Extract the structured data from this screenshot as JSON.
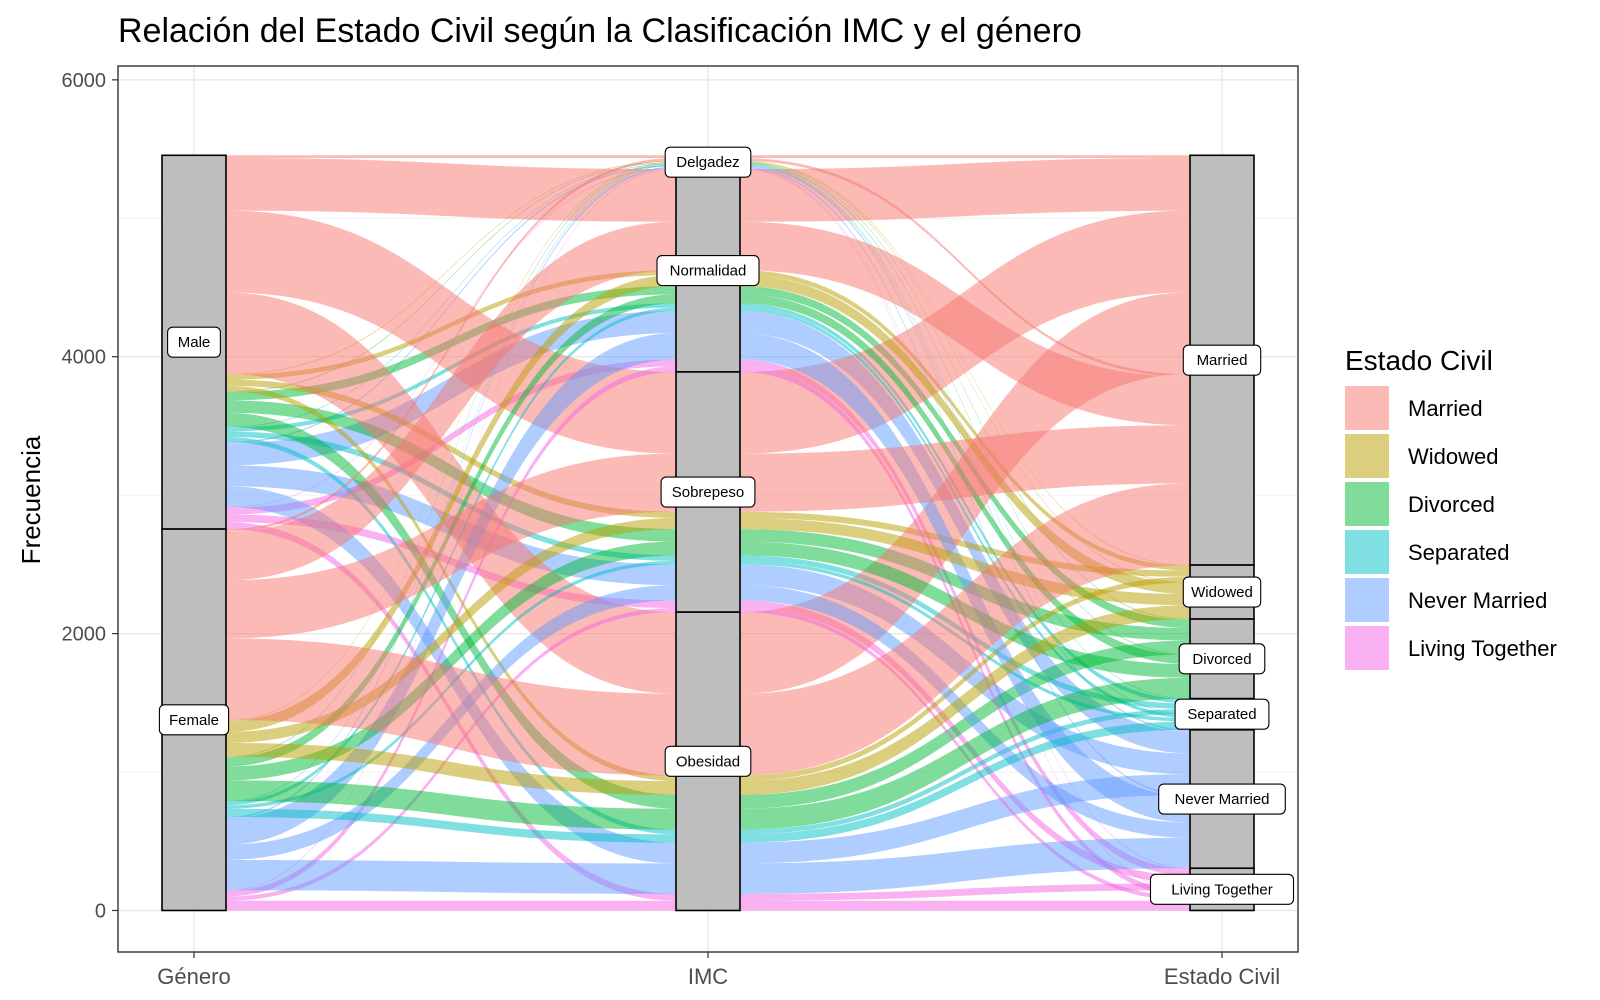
{
  "chart_data": {
    "type": "alluvial",
    "title": "Relación del Estado Civil según la Clasificación IMC y el género",
    "xlabel": "",
    "ylabel": "Frecuencia",
    "ylim": [
      -300,
      6100
    ],
    "yticks": [
      0,
      2000,
      4000,
      6000
    ],
    "axes": [
      "Género",
      "IMC",
      "Estado Civil"
    ],
    "grid": true,
    "legend_position": "right",
    "legend_title": "Estado Civil",
    "categories": {
      "genero": [
        "Male",
        "Female"
      ],
      "imc": [
        "Delgadez",
        "Normalidad",
        "Sobrepeso",
        "Obesidad"
      ],
      "estado": [
        "Married",
        "Widowed",
        "Divorced",
        "Separated",
        "Never Married",
        "Living Together"
      ]
    },
    "colors": {
      "Married": "#F8766D",
      "Widowed": "#B79F00",
      "Divorced": "#00BA38",
      "Separated": "#00BFC4",
      "Never Married": "#619CFF",
      "Living Together": "#F564E3"
    },
    "flows": [
      {
        "genero": "Male",
        "imc": "Delgadez",
        "estado": "Married",
        "value": 20
      },
      {
        "genero": "Male",
        "imc": "Delgadez",
        "estado": "Widowed",
        "value": 5
      },
      {
        "genero": "Male",
        "imc": "Delgadez",
        "estado": "Divorced",
        "value": 5
      },
      {
        "genero": "Male",
        "imc": "Delgadez",
        "estado": "Separated",
        "value": 5
      },
      {
        "genero": "Male",
        "imc": "Delgadez",
        "estado": "Never Married",
        "value": 10
      },
      {
        "genero": "Male",
        "imc": "Delgadez",
        "estado": "Living Together",
        "value": 5
      },
      {
        "genero": "Male",
        "imc": "Normalidad",
        "estado": "Married",
        "value": 380
      },
      {
        "genero": "Male",
        "imc": "Normalidad",
        "estado": "Widowed",
        "value": 35
      },
      {
        "genero": "Male",
        "imc": "Normalidad",
        "estado": "Divorced",
        "value": 60
      },
      {
        "genero": "Male",
        "imc": "Normalidad",
        "estado": "Separated",
        "value": 30
      },
      {
        "genero": "Male",
        "imc": "Normalidad",
        "estado": "Never Married",
        "value": 160
      },
      {
        "genero": "Male",
        "imc": "Normalidad",
        "estado": "Living Together",
        "value": 50
      },
      {
        "genero": "Male",
        "imc": "Sobrepeso",
        "estado": "Married",
        "value": 590
      },
      {
        "genero": "Male",
        "imc": "Sobrepeso",
        "estado": "Widowed",
        "value": 45
      },
      {
        "genero": "Male",
        "imc": "Sobrepeso",
        "estado": "Divorced",
        "value": 90
      },
      {
        "genero": "Male",
        "imc": "Sobrepeso",
        "estado": "Separated",
        "value": 40
      },
      {
        "genero": "Male",
        "imc": "Sobrepeso",
        "estado": "Never Married",
        "value": 150
      },
      {
        "genero": "Male",
        "imc": "Sobrepeso",
        "estado": "Living Together",
        "value": 55
      },
      {
        "genero": "Male",
        "imc": "Obesidad",
        "estado": "Married",
        "value": 590
      },
      {
        "genero": "Male",
        "imc": "Obesidad",
        "estado": "Widowed",
        "value": 40
      },
      {
        "genero": "Male",
        "imc": "Obesidad",
        "estado": "Divorced",
        "value": 100
      },
      {
        "genero": "Male",
        "imc": "Obesidad",
        "estado": "Separated",
        "value": 35
      },
      {
        "genero": "Male",
        "imc": "Obesidad",
        "estado": "Never Married",
        "value": 150
      },
      {
        "genero": "Male",
        "imc": "Obesidad",
        "estado": "Living Together",
        "value": 50
      },
      {
        "genero": "Female",
        "imc": "Delgadez",
        "estado": "Married",
        "value": 20
      },
      {
        "genero": "Female",
        "imc": "Delgadez",
        "estado": "Widowed",
        "value": 5
      },
      {
        "genero": "Female",
        "imc": "Delgadez",
        "estado": "Divorced",
        "value": 5
      },
      {
        "genero": "Female",
        "imc": "Delgadez",
        "estado": "Separated",
        "value": 5
      },
      {
        "genero": "Female",
        "imc": "Delgadez",
        "estado": "Never Married",
        "value": 10
      },
      {
        "genero": "Female",
        "imc": "Delgadez",
        "estado": "Living Together",
        "value": 5
      },
      {
        "genero": "Female",
        "imc": "Normalidad",
        "estado": "Married",
        "value": 350
      },
      {
        "genero": "Female",
        "imc": "Normalidad",
        "estado": "Widowed",
        "value": 80
      },
      {
        "genero": "Female",
        "imc": "Normalidad",
        "estado": "Divorced",
        "value": 65
      },
      {
        "genero": "Female",
        "imc": "Normalidad",
        "estado": "Separated",
        "value": 25
      },
      {
        "genero": "Female",
        "imc": "Normalidad",
        "estado": "Never Married",
        "value": 190
      },
      {
        "genero": "Female",
        "imc": "Normalidad",
        "estado": "Living Together",
        "value": 40
      },
      {
        "genero": "Female",
        "imc": "Sobrepeso",
        "estado": "Married",
        "value": 420
      },
      {
        "genero": "Female",
        "imc": "Sobrepeso",
        "estado": "Widowed",
        "value": 80
      },
      {
        "genero": "Female",
        "imc": "Sobrepeso",
        "estado": "Divorced",
        "value": 100
      },
      {
        "genero": "Female",
        "imc": "Sobrepeso",
        "estado": "Separated",
        "value": 25
      },
      {
        "genero": "Female",
        "imc": "Sobrepeso",
        "estado": "Never Married",
        "value": 110
      },
      {
        "genero": "Female",
        "imc": "Sobrepeso",
        "estado": "Living Together",
        "value": 30
      },
      {
        "genero": "Female",
        "imc": "Obesidad",
        "estado": "Married",
        "value": 590
      },
      {
        "genero": "Female",
        "imc": "Obesidad",
        "estado": "Widowed",
        "value": 100
      },
      {
        "genero": "Female",
        "imc": "Obesidad",
        "estado": "Divorced",
        "value": 150
      },
      {
        "genero": "Female",
        "imc": "Obesidad",
        "estado": "Separated",
        "value": 60
      },
      {
        "genero": "Female",
        "imc": "Obesidad",
        "estado": "Never Married",
        "value": 220
      },
      {
        "genero": "Female",
        "imc": "Obesidad",
        "estado": "Living Together",
        "value": 70
      }
    ]
  }
}
